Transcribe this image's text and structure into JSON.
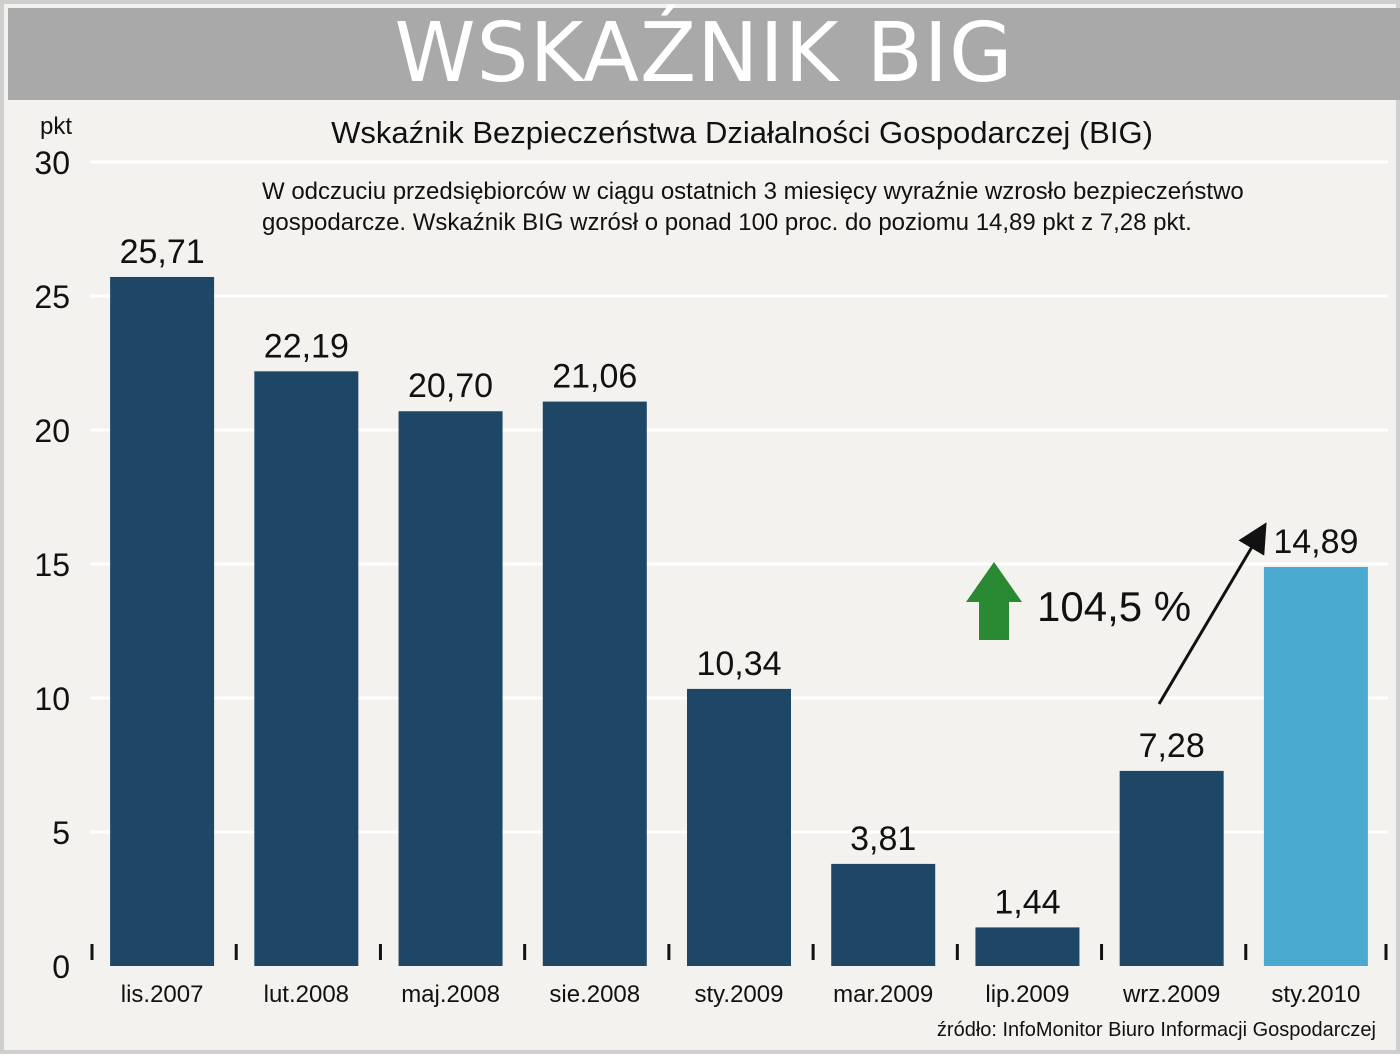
{
  "header": {
    "banner_title": "WSKAŹNIK BIG"
  },
  "chart_data": {
    "type": "bar",
    "title": "Wskaźnik Bezpieczeństwa Działalności Gospodarczej (BIG)",
    "ylabel": "pkt",
    "ylim": [
      0,
      30
    ],
    "yticks": [
      "0",
      "5",
      "10",
      "15",
      "20",
      "25",
      "30"
    ],
    "grid": true,
    "categories": [
      "lis.2007",
      "lut.2008",
      "maj.2008",
      "sie.2008",
      "sty.2009",
      "mar.2009",
      "lip.2009",
      "wrz.2009",
      "sty.2010"
    ],
    "values": [
      25.71,
      22.19,
      20.7,
      21.06,
      10.34,
      3.81,
      1.44,
      7.28,
      14.89
    ],
    "value_labels": [
      "25,71",
      "22,19",
      "20,70",
      "21,06",
      "10,34",
      "3,81",
      "1,44",
      "7,28",
      "14,89"
    ],
    "bar_colors": [
      "#1e4766",
      "#1e4766",
      "#1e4766",
      "#1e4766",
      "#1e4766",
      "#1e4766",
      "#1e4766",
      "#1e4766",
      "#4aa9cf"
    ],
    "annotations": {
      "description_line1": "W odczuciu przedsiębiorców w ciągu ostatnich 3 miesięcy wyraźnie wzrosło bezpieczeństwo",
      "description_line2": "gospodarcze. Wskaźnik BIG wzrósł o ponad 100 proc. do poziomu 14,89 pkt z 7,28 pkt.",
      "change_label": "104,5 %",
      "up_arrow_color": "#2a8a33",
      "source": "źródło: InfoMonitor Biuro Informacji Gospodarczej"
    }
  }
}
